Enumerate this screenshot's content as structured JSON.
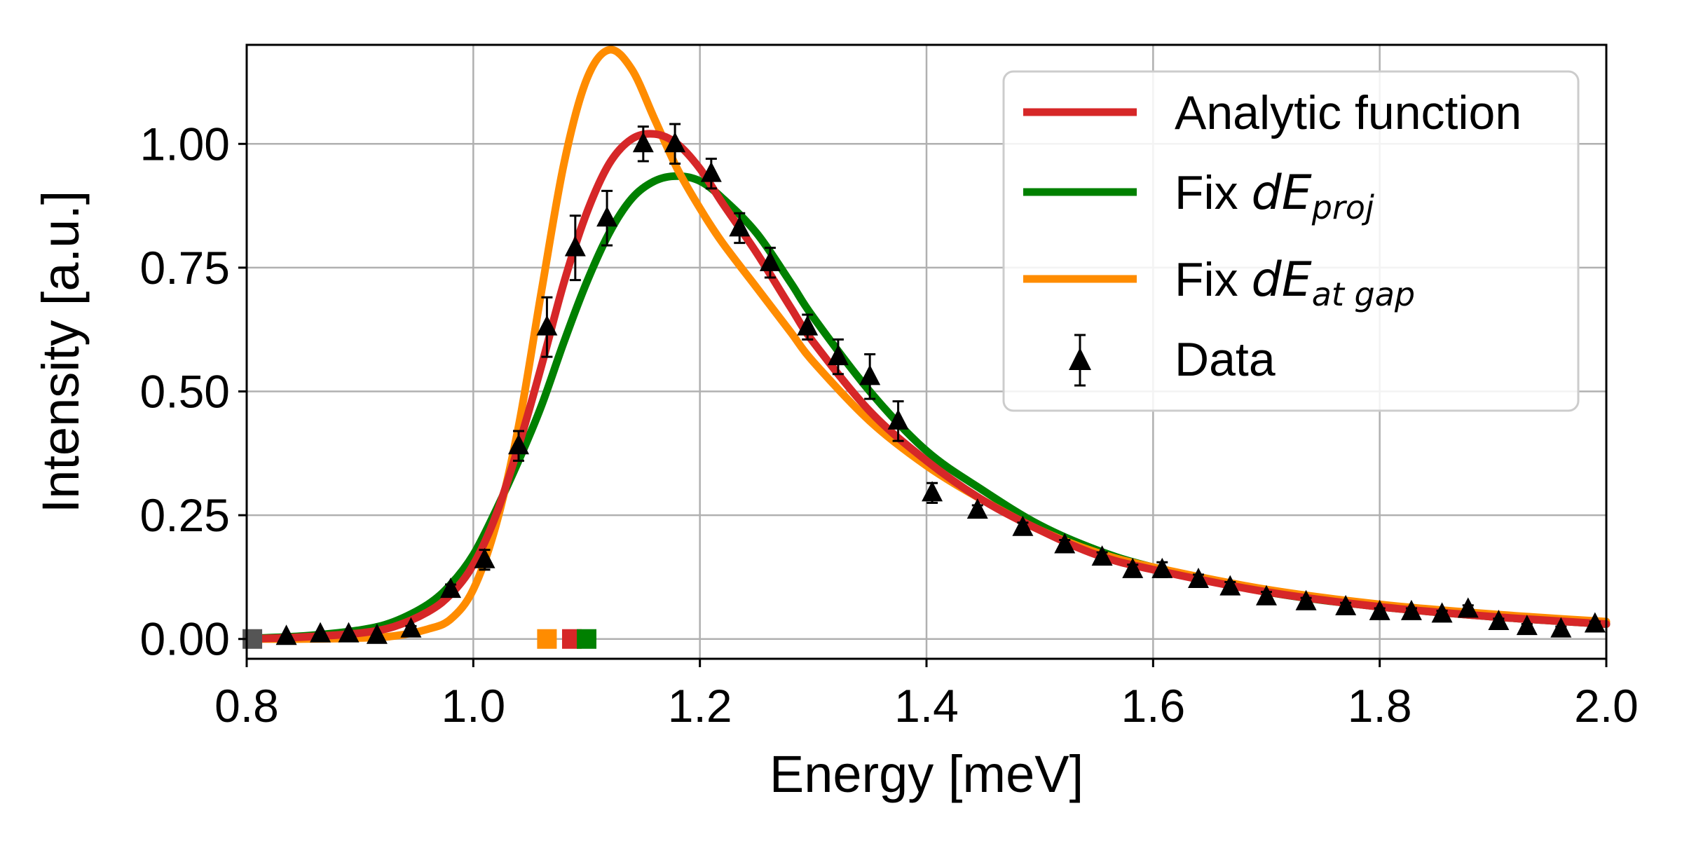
{
  "chart_data": {
    "type": "line",
    "xlabel": "Energy [meV]",
    "ylabel": "Intensity [a.u.]",
    "xlim": [
      0.8,
      2.0
    ],
    "ylim": [
      -0.04,
      1.2
    ],
    "x_ticks": [
      "0.8",
      "1.0",
      "1.2",
      "1.4",
      "1.6",
      "1.8",
      "2.0"
    ],
    "y_ticks": [
      "0.00",
      "0.25",
      "0.50",
      "0.75",
      "1.00"
    ],
    "grid": true,
    "legend_position": "top-right",
    "legend": {
      "analytic": "Analytic function",
      "fix_proj_prefix": "Fix ",
      "fix_proj_main": "dE",
      "fix_proj_sub": "proj",
      "fix_gap_prefix": "Fix ",
      "fix_gap_main": "dE",
      "fix_gap_sub": "at gap",
      "data": "Data"
    },
    "series": [
      {
        "name": "Analytic function",
        "color": "#d62728",
        "x": [
          0.8,
          0.85,
          0.9,
          0.93,
          0.96,
          0.98,
          1.0,
          1.02,
          1.04,
          1.06,
          1.08,
          1.1,
          1.12,
          1.14,
          1.16,
          1.18,
          1.2,
          1.22,
          1.25,
          1.28,
          1.3,
          1.35,
          1.4,
          1.45,
          1.5,
          1.55,
          1.6,
          1.7,
          1.8,
          1.9,
          2.0
        ],
        "values": [
          0.0,
          0.004,
          0.012,
          0.025,
          0.055,
          0.09,
          0.15,
          0.25,
          0.39,
          0.55,
          0.72,
          0.86,
          0.96,
          1.01,
          1.02,
          1.0,
          0.95,
          0.88,
          0.78,
          0.67,
          0.6,
          0.46,
          0.36,
          0.28,
          0.22,
          0.17,
          0.14,
          0.095,
          0.065,
          0.045,
          0.03
        ]
      },
      {
        "name": "Fix dE_proj",
        "color": "#008000",
        "x": [
          0.8,
          0.85,
          0.9,
          0.93,
          0.96,
          0.98,
          1.0,
          1.02,
          1.04,
          1.06,
          1.08,
          1.1,
          1.12,
          1.14,
          1.16,
          1.18,
          1.2,
          1.22,
          1.25,
          1.28,
          1.3,
          1.35,
          1.4,
          1.45,
          1.5,
          1.55,
          1.6,
          1.7,
          1.8,
          1.9,
          2.0
        ],
        "values": [
          0.001,
          0.006,
          0.018,
          0.035,
          0.07,
          0.11,
          0.17,
          0.26,
          0.36,
          0.47,
          0.6,
          0.72,
          0.82,
          0.89,
          0.925,
          0.935,
          0.925,
          0.89,
          0.82,
          0.72,
          0.65,
          0.5,
          0.38,
          0.3,
          0.23,
          0.18,
          0.145,
          0.095,
          0.065,
          0.045,
          0.03
        ]
      },
      {
        "name": "Fix dE_at gap",
        "color": "#ff8c00",
        "x": [
          0.8,
          0.85,
          0.9,
          0.93,
          0.96,
          0.98,
          1.0,
          1.02,
          1.04,
          1.06,
          1.08,
          1.1,
          1.12,
          1.14,
          1.16,
          1.18,
          1.2,
          1.22,
          1.25,
          1.28,
          1.3,
          1.35,
          1.4,
          1.45,
          1.5,
          1.55,
          1.6,
          1.7,
          1.8,
          1.9,
          2.0
        ],
        "values": [
          0.0,
          0.0,
          0.002,
          0.006,
          0.02,
          0.04,
          0.1,
          0.23,
          0.43,
          0.7,
          0.96,
          1.13,
          1.19,
          1.15,
          1.05,
          0.95,
          0.87,
          0.8,
          0.71,
          0.62,
          0.56,
          0.44,
          0.35,
          0.28,
          0.22,
          0.175,
          0.145,
          0.1,
          0.07,
          0.05,
          0.035
        ]
      }
    ],
    "data_points": {
      "name": "Data",
      "color": "#000000",
      "x": [
        0.835,
        0.865,
        0.89,
        0.915,
        0.945,
        0.98,
        1.01,
        1.04,
        1.065,
        1.09,
        1.118,
        1.15,
        1.178,
        1.21,
        1.235,
        1.262,
        1.295,
        1.322,
        1.35,
        1.375,
        1.405,
        1.445,
        1.485,
        1.522,
        1.555,
        1.582,
        1.608,
        1.64,
        1.668,
        1.7,
        1.735,
        1.77,
        1.8,
        1.828,
        1.855,
        1.878,
        1.905,
        1.93,
        1.96,
        1.99
      ],
      "y": [
        0.005,
        0.01,
        0.01,
        0.007,
        0.02,
        0.1,
        0.16,
        0.39,
        0.63,
        0.79,
        0.85,
        1.0,
        1.0,
        0.94,
        0.83,
        0.76,
        0.63,
        0.57,
        0.53,
        0.44,
        0.295,
        0.26,
        0.225,
        0.19,
        0.165,
        0.14,
        0.14,
        0.12,
        0.105,
        0.085,
        0.075,
        0.065,
        0.055,
        0.055,
        0.05,
        0.06,
        0.035,
        0.025,
        0.02,
        0.03
      ],
      "err": [
        0.003,
        0.004,
        0.004,
        0.004,
        0.006,
        0.01,
        0.02,
        0.03,
        0.06,
        0.065,
        0.055,
        0.035,
        0.04,
        0.03,
        0.03,
        0.03,
        0.025,
        0.035,
        0.045,
        0.04,
        0.02,
        0.01,
        0.01,
        0.01,
        0.01,
        0.01,
        0.015,
        0.01,
        0.01,
        0.01,
        0.008,
        0.008,
        0.007,
        0.007,
        0.007,
        0.008,
        0.006,
        0.005,
        0.005,
        0.005
      ]
    },
    "markers_at_baseline": [
      {
        "x": 0.805,
        "color": "#555555"
      },
      {
        "x": 1.065,
        "color": "#ff8c00"
      },
      {
        "x": 1.087,
        "color": "#d62728"
      },
      {
        "x": 1.1,
        "color": "#008000"
      }
    ]
  }
}
